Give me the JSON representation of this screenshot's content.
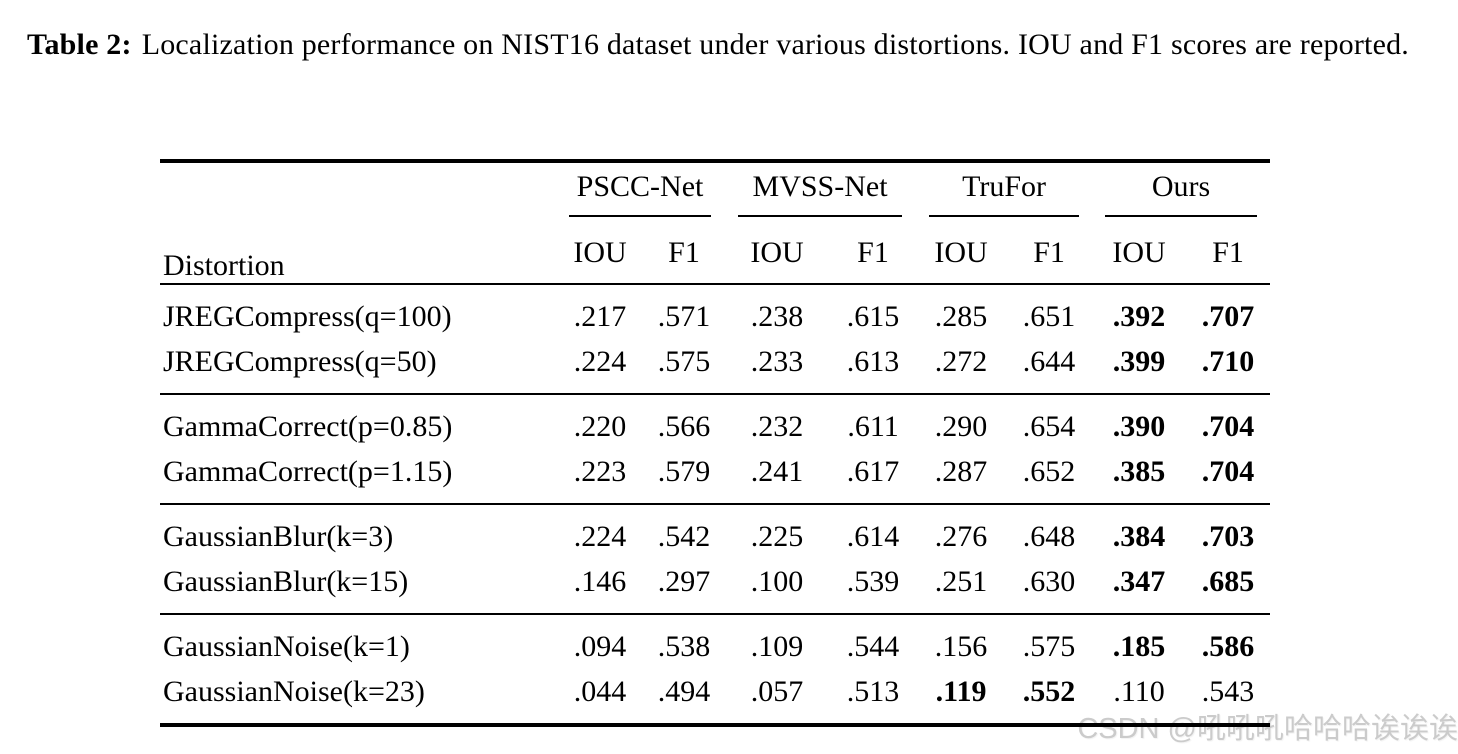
{
  "caption": {
    "label": "Table 2:",
    "text": "Localization performance on NIST16 dataset under various distortions. IOU and F1 scores are reported."
  },
  "table": {
    "distortion_header": "Distortion",
    "method_groups": [
      "PSCC-Net",
      "MVSS-Net",
      "TruFor",
      "Ours"
    ],
    "metric_headers": [
      "IOU",
      "F1",
      "IOU",
      "F1",
      "IOU",
      "F1",
      "IOU",
      "F1"
    ],
    "groups": [
      {
        "rows": [
          {
            "label": "JREGCompress(q=100)",
            "values": [
              ".217",
              ".571",
              ".238",
              ".615",
              ".285",
              ".651",
              ".392",
              ".707"
            ]
          },
          {
            "label": "JREGCompress(q=50)",
            "values": [
              ".224",
              ".575",
              ".233",
              ".613",
              ".272",
              ".644",
              ".399",
              ".710"
            ]
          }
        ]
      },
      {
        "rows": [
          {
            "label": "GammaCorrect(p=0.85)",
            "values": [
              ".220",
              ".566",
              ".232",
              ".611",
              ".290",
              ".654",
              ".390",
              ".704"
            ]
          },
          {
            "label": "GammaCorrect(p=1.15)",
            "values": [
              ".223",
              ".579",
              ".241",
              ".617",
              ".287",
              ".652",
              ".385",
              ".704"
            ]
          }
        ]
      },
      {
        "rows": [
          {
            "label": "GaussianBlur(k=3)",
            "values": [
              ".224",
              ".542",
              ".225",
              ".614",
              ".276",
              ".648",
              ".384",
              ".703"
            ]
          },
          {
            "label": "GaussianBlur(k=15)",
            "values": [
              ".146",
              ".297",
              ".100",
              ".539",
              ".251",
              ".630",
              ".347",
              ".685"
            ]
          }
        ]
      },
      {
        "rows": [
          {
            "label": "GaussianNoise(k=1)",
            "values": [
              ".094",
              ".538",
              ".109",
              ".544",
              ".156",
              ".575",
              ".185",
              ".586"
            ]
          },
          {
            "label": "GaussianNoise(k=23)",
            "values": [
              ".044",
              ".494",
              ".057",
              ".513",
              ".119",
              ".552",
              ".110",
              ".543"
            ]
          }
        ]
      }
    ]
  },
  "watermark": {
    "text": "CSDN @吼吼吼哈哈哈诶诶诶",
    "color": "#cbcbcb"
  }
}
